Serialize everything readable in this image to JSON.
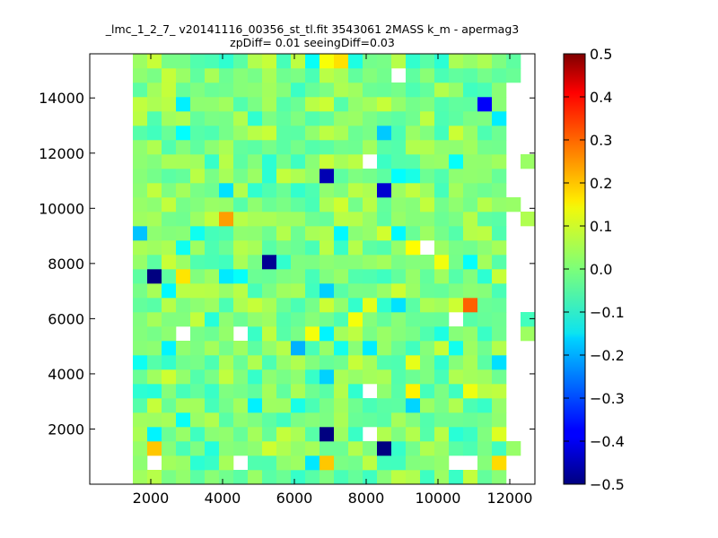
{
  "chart_data": {
    "type": "heatmap",
    "title": "_lmc_1_2_7_ v20141116_00356_st_tl.fit 3543061 2MASS k_m - apermag3",
    "subtitle": "zpDiff= 0.01 seeingDiff=0.03",
    "xlabel": "",
    "ylabel": "",
    "xlim": [
      300,
      12700
    ],
    "ylim": [
      0,
      15600
    ],
    "xticks": [
      "2000",
      "4000",
      "6000",
      "8000",
      "10000",
      "12000"
    ],
    "yticks": [
      "2000",
      "4000",
      "6000",
      "8000",
      "10000",
      "12000",
      "14000"
    ],
    "colorbar": {
      "range": [
        -0.5,
        0.5
      ],
      "ticks": [
        "0.5",
        "0.4",
        "0.3",
        "0.2",
        "0.1",
        "0.0",
        "−0.1",
        "−0.2",
        "−0.3",
        "−0.4",
        "−0.5"
      ],
      "colormap": "jet"
    },
    "grid": {
      "x_start": 300,
      "x_step": 400,
      "y_start": 0,
      "y_step": 520,
      "cols": 31,
      "rows": 30
    },
    "outliers": [
      {
        "x": 7000,
        "y": 11400,
        "value": -0.45
      },
      {
        "x": 8600,
        "y": 10400,
        "value": -0.42
      },
      {
        "x": 11300,
        "y": 13800,
        "value": -0.38
      },
      {
        "x": 4200,
        "y": 9700,
        "value": 0.22
      },
      {
        "x": 11000,
        "y": 6300,
        "value": 0.28
      },
      {
        "x": 5100,
        "y": 8100,
        "value": -0.48
      },
      {
        "x": 2000,
        "y": 7700,
        "value": -0.5
      },
      {
        "x": 7000,
        "y": 1700,
        "value": -0.5
      },
      {
        "x": 8600,
        "y": 1200,
        "value": -0.5
      },
      {
        "x": 2000,
        "y": 1200,
        "value": 0.18
      },
      {
        "x": 7000,
        "y": 700,
        "value": 0.18
      },
      {
        "x": 11600,
        "y": 700,
        "value": 0.16
      },
      {
        "x": 9000,
        "y": 14800,
        "value": null
      },
      {
        "x": 8200,
        "y": 11900,
        "value": null
      },
      {
        "x": 9800,
        "y": 8700,
        "value": null
      },
      {
        "x": 3000,
        "y": 5700,
        "value": null
      },
      {
        "x": 4600,
        "y": 5200,
        "value": null
      },
      {
        "x": 10300,
        "y": 6200,
        "value": null
      },
      {
        "x": 8200,
        "y": 3600,
        "value": null
      },
      {
        "x": 8200,
        "y": 1700,
        "value": null
      },
      {
        "x": 10300,
        "y": 700,
        "value": null
      },
      {
        "x": 11000,
        "y": 700,
        "value": null
      },
      {
        "x": 4600,
        "y": 700,
        "value": null
      },
      {
        "x": 2000,
        "y": 700,
        "value": null
      }
    ]
  }
}
